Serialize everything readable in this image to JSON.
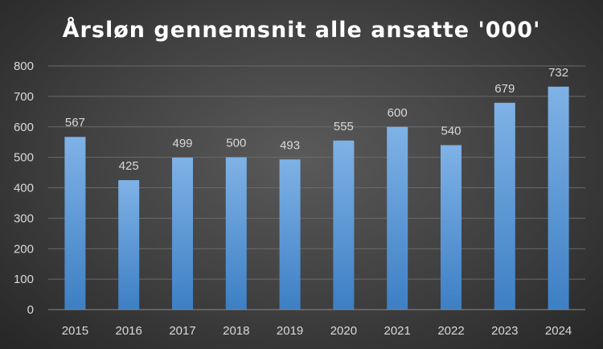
{
  "chart_data": {
    "type": "bar",
    "title": "Årsløn gennemsnit alle ansatte '000'",
    "categories": [
      "2015",
      "2016",
      "2017",
      "2018",
      "2019",
      "2020",
      "2021",
      "2022",
      "2023",
      "2024"
    ],
    "values": [
      567,
      425,
      499,
      500,
      493,
      555,
      600,
      540,
      679,
      732
    ],
    "data_labels": [
      "567",
      "425",
      "499",
      "500",
      "493",
      "555",
      "600",
      "540",
      "679",
      "732"
    ],
    "yticks": [
      "0",
      "100",
      "200",
      "300",
      "400",
      "500",
      "600",
      "700",
      "800"
    ],
    "ylim": [
      0,
      800
    ],
    "grid": true,
    "legend": "none",
    "colors": {
      "bar_top": "#7fb2e6",
      "bar_bottom": "#3d7fc4",
      "title": "#ffffff",
      "text": "#d9d9d9"
    }
  }
}
